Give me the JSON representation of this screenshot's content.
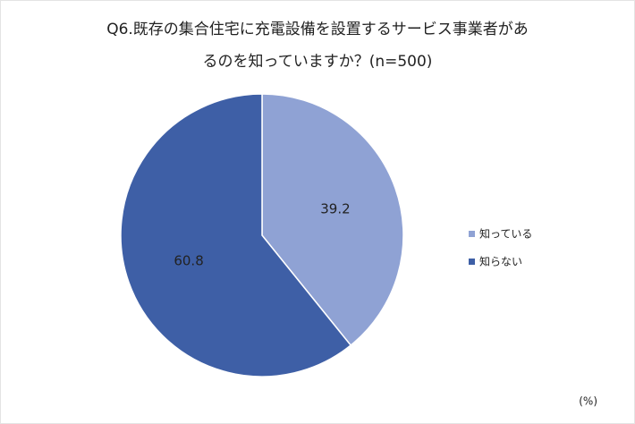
{
  "chart_data": {
    "type": "pie",
    "title": [
      "Q6.既存の集合住宅に充電設備を設置するサービス事業者があ",
      "るのを知っていますか？(n=500)"
    ],
    "categories": [
      "知っている",
      "知らない"
    ],
    "values": [
      39.2,
      60.8
    ],
    "colors": [
      "#8fa2d4",
      "#3e5fa6"
    ],
    "unit_label": "(%)"
  }
}
